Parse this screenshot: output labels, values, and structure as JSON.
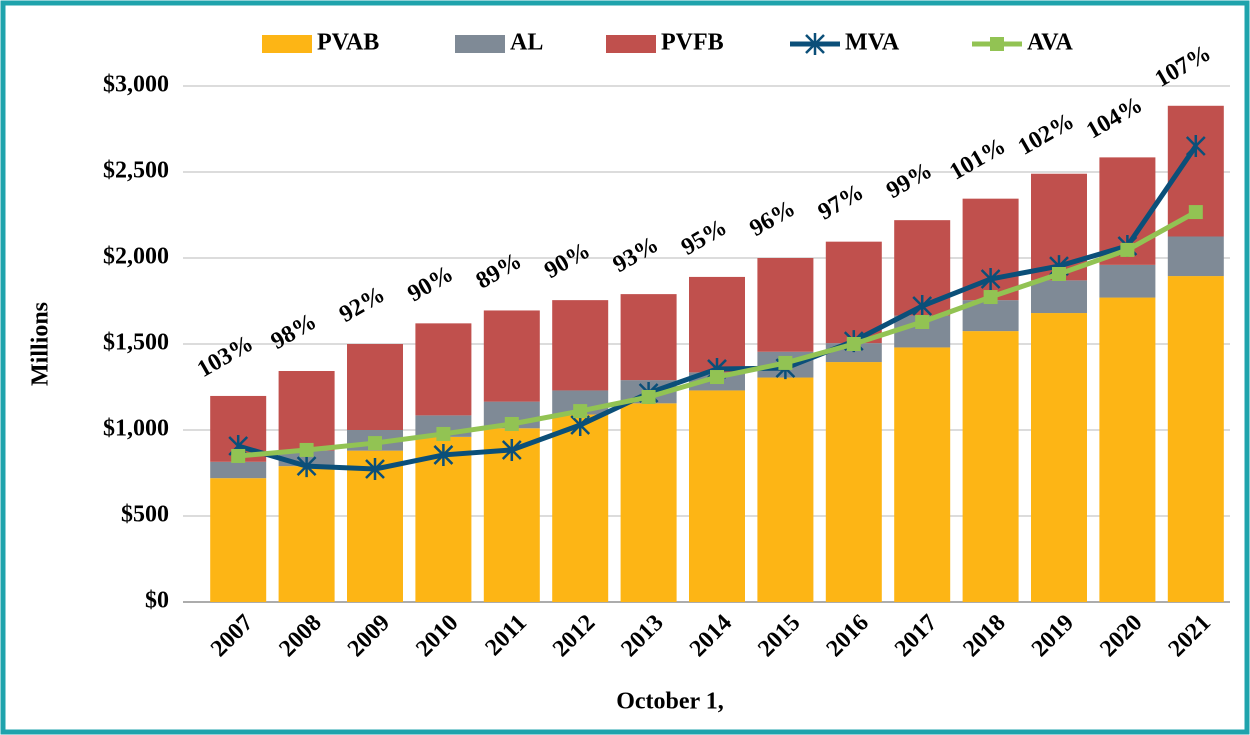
{
  "chart_data": {
    "type": "stacked_bar_line",
    "x_label": "October 1,",
    "y_label": "Millions",
    "categories": [
      "2007",
      "2008",
      "2009",
      "2010",
      "2011",
      "2012",
      "2013",
      "2014",
      "2015",
      "2016",
      "2017",
      "2018",
      "2019",
      "2020",
      "2021"
    ],
    "series": [
      {
        "name": "PVAB",
        "kind": "bar",
        "color": "#FDB515",
        "values": [
          720,
          790,
          880,
          960,
          1010,
          1090,
          1155,
          1230,
          1305,
          1395,
          1480,
          1575,
          1680,
          1770,
          1895
        ]
      },
      {
        "name": "AL",
        "kind": "bar",
        "color": "#7F8A96",
        "values": [
          95,
          90,
          120,
          125,
          155,
          140,
          135,
          105,
          150,
          110,
          185,
          180,
          190,
          190,
          230
        ]
      },
      {
        "name": "PVFB",
        "kind": "bar",
        "color": "#C0504D",
        "values": [
          383,
          463,
          500,
          535,
          530,
          525,
          500,
          555,
          545,
          590,
          555,
          590,
          620,
          625,
          760
        ]
      },
      {
        "name": "MVA",
        "kind": "line",
        "marker": "star",
        "color": "#0B4F79",
        "values": [
          907,
          790,
          773,
          855,
          884,
          1029,
          1215,
          1355,
          1360,
          1517,
          1721,
          1878,
          1953,
          2070,
          2651
        ]
      },
      {
        "name": "AVA",
        "kind": "line",
        "marker": "square",
        "color": "#92C353",
        "values": [
          849,
          884,
          924,
          977,
          1035,
          1110,
          1192,
          1308,
          1390,
          1500,
          1628,
          1773,
          1907,
          2047,
          2267
        ]
      }
    ],
    "annotations": [
      "103%",
      "98%",
      "92%",
      "90%",
      "89%",
      "90%",
      "93%",
      "95%",
      "96%",
      "97%",
      "99%",
      "101%",
      "102%",
      "104%",
      "107%"
    ],
    "ylim": [
      0,
      3000
    ],
    "yticks": [
      {
        "value": 0,
        "label": "$0"
      },
      {
        "value": 500,
        "label": "$500"
      },
      {
        "value": 1000,
        "label": "$1,000"
      },
      {
        "value": 1500,
        "label": "$1,500"
      },
      {
        "value": 2000,
        "label": "$2,000"
      },
      {
        "value": 2500,
        "label": "$2,500"
      },
      {
        "value": 3000,
        "label": "$3,000"
      }
    ],
    "grid": true
  }
}
